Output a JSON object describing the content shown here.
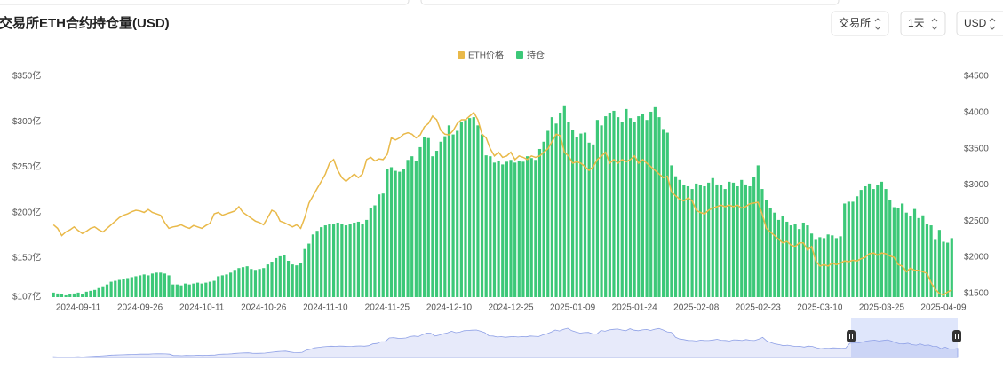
{
  "chart_data": {
    "type": "bar",
    "title": "交易所ETH合约持仓量(USD)",
    "categories": [
      null,
      null,
      null,
      null,
      null,
      null,
      "2024-09-11",
      null,
      null,
      null,
      null,
      null,
      null,
      null,
      null,
      null,
      null,
      null,
      null,
      null,
      null,
      "2024-09-26",
      null,
      null,
      null,
      null,
      null,
      null,
      null,
      null,
      null,
      null,
      null,
      null,
      null,
      null,
      "2024-10-11",
      null,
      null,
      null,
      null,
      null,
      null,
      null,
      null,
      null,
      null,
      null,
      null,
      null,
      null,
      "2024-10-26",
      null,
      null,
      null,
      null,
      null,
      null,
      null,
      null,
      null,
      null,
      null,
      null,
      null,
      null,
      "2024-11-10",
      null,
      null,
      null,
      null,
      null,
      null,
      null,
      null,
      null,
      null,
      null,
      null,
      null,
      null,
      "2024-11-25",
      null,
      null,
      null,
      null,
      null,
      null,
      null,
      null,
      null,
      null,
      null,
      null,
      null,
      null,
      "2024-12-10",
      null,
      null,
      null,
      null,
      null,
      null,
      null,
      null,
      null,
      null,
      null,
      null,
      null,
      null,
      "2024-12-25",
      null,
      null,
      null,
      null,
      null,
      null,
      null,
      null,
      null,
      null,
      null,
      null,
      null,
      null,
      "2025-01-09",
      null,
      null,
      null,
      null,
      null,
      null,
      null,
      null,
      null,
      null,
      null,
      null,
      null,
      null,
      "2025-01-24",
      null,
      null,
      null,
      null,
      null,
      null,
      null,
      null,
      null,
      null,
      null,
      null,
      null,
      null,
      "2025-02-08",
      null,
      null,
      null,
      null,
      null,
      null,
      null,
      null,
      null,
      null,
      null,
      null,
      null,
      null,
      "2025-02-23",
      null,
      null,
      null,
      null,
      null,
      null,
      null,
      null,
      null,
      null,
      null,
      null,
      null,
      null,
      "2025-03-10",
      null,
      null,
      null,
      null,
      null,
      null,
      null,
      null,
      null,
      null,
      null,
      null,
      null,
      null,
      "2025-03-25",
      null,
      null,
      null,
      null,
      null,
      null,
      null,
      null,
      null,
      null,
      null,
      null,
      null,
      null,
      "2025-04-09",
      null,
      null
    ],
    "series": [
      {
        "name": "ETH价格",
        "type": "line",
        "axis": "y2",
        "color": "#e9b949",
        "values": [
          2450,
          2400,
          2300,
          2350,
          2380,
          2420,
          2370,
          2330,
          2360,
          2400,
          2420,
          2380,
          2350,
          2400,
          2450,
          2500,
          2550,
          2580,
          2600,
          2630,
          2650,
          2640,
          2620,
          2660,
          2620,
          2600,
          2580,
          2480,
          2400,
          2420,
          2430,
          2450,
          2420,
          2400,
          2440,
          2420,
          2400,
          2440,
          2470,
          2600,
          2620,
          2580,
          2600,
          2620,
          2640,
          2700,
          2620,
          2580,
          2540,
          2500,
          2480,
          2450,
          2550,
          2650,
          2620,
          2500,
          2480,
          2450,
          2420,
          2450,
          2400,
          2550,
          2750,
          2850,
          2950,
          3050,
          3150,
          3300,
          3350,
          3200,
          3100,
          3050,
          3100,
          3150,
          3100,
          3150,
          3350,
          3380,
          3330,
          3360,
          3350,
          3420,
          3650,
          3620,
          3650,
          3700,
          3720,
          3700,
          3650,
          3690,
          3800,
          3850,
          3950,
          3900,
          3750,
          3700,
          3690,
          3750,
          3850,
          3900,
          3900,
          3950,
          4000,
          3900,
          3700,
          3650,
          3500,
          3400,
          3450,
          3380,
          3400,
          3450,
          3350,
          3400,
          3380,
          3350,
          3400,
          3380,
          3400,
          3450,
          3500,
          3600,
          3700,
          3680,
          3450,
          3400,
          3300,
          3320,
          3300,
          3250,
          3200,
          3250,
          3350,
          3400,
          3450,
          3300,
          3350,
          3300,
          3350,
          3320,
          3350,
          3400,
          3300,
          3350,
          3300,
          3250,
          3200,
          3150,
          3100,
          3120,
          2900,
          2850,
          2800,
          2780,
          2820,
          2780,
          2650,
          2620,
          2600,
          2650,
          2680,
          2700,
          2720,
          2700,
          2720,
          2700,
          2720,
          2680,
          2700,
          2740,
          2750,
          2760,
          2600,
          2400,
          2350,
          2300,
          2250,
          2200,
          2220,
          2170,
          2150,
          2200,
          2200,
          2100,
          2150,
          1950,
          1880,
          1900,
          1880,
          1920,
          1900,
          1920,
          1950,
          1940,
          1960,
          1950,
          1980,
          2000,
          2050,
          2060,
          2030,
          2060,
          2050,
          2020,
          2000,
          1900,
          1880,
          1800,
          1850,
          1820,
          1820,
          1800,
          1780,
          1650,
          1560,
          1500,
          1480,
          1520,
          1550
        ]
      },
      {
        "name": "持仓",
        "type": "bar",
        "color": "#3cc878",
        "values": [
          112,
          111,
          110,
          109,
          110,
          111,
          112,
          110,
          113,
          114,
          115,
          117,
          119,
          121,
          124,
          125,
          126,
          127,
          128,
          129,
          130,
          131,
          132,
          131,
          133,
          134,
          134,
          133,
          131,
          121,
          121,
          120,
          122,
          121,
          122,
          123,
          122,
          123,
          124,
          125,
          130,
          131,
          132,
          134,
          137,
          139,
          140,
          141,
          138,
          137,
          138,
          139,
          143,
          146,
          150,
          152,
          153,
          147,
          143,
          142,
          145,
          160,
          166,
          176,
          180,
          184,
          186,
          188,
          187,
          189,
          188,
          186,
          187,
          189,
          190,
          188,
          192,
          205,
          208,
          220,
          221,
          248,
          250,
          246,
          245,
          248,
          258,
          262,
          257,
          272,
          283,
          282,
          262,
          268,
          278,
          284,
          296,
          286,
          290,
          300,
          302,
          304,
          305,
          296,
          286,
          263,
          262,
          255,
          257,
          253,
          256,
          258,
          255,
          257,
          256,
          262,
          260,
          258,
          270,
          278,
          290,
          305,
          298,
          310,
          318,
          300,
          291,
          283,
          287,
          288,
          277,
          275,
          302,
          296,
          306,
          310,
          312,
          305,
          300,
          314,
          304,
          300,
          306,
          309,
          302,
          311,
          316,
          305,
          292,
          288,
          252,
          240,
          236,
          230,
          229,
          226,
          232,
          230,
          229,
          233,
          238,
          231,
          230,
          226,
          234,
          233,
          229,
          236,
          231,
          229,
          239,
          252,
          226,
          214,
          205,
          200,
          192,
          196,
          190,
          186,
          187,
          182,
          189,
          186,
          177,
          170,
          173,
          172,
          176,
          175,
          172,
          174,
          210,
          212,
          212,
          218,
          225,
          229,
          232,
          226,
          230,
          234,
          226,
          214,
          206,
          205,
          210,
          200,
          196,
          204,
          194,
          197,
          187,
          186,
          170,
          181,
          168,
          167,
          172
        ]
      }
    ],
    "ylim": [
      107,
      350
    ],
    "yticks": [
      {
        "value": 107,
        "label": "$107亿"
      },
      {
        "value": 150,
        "label": "$150亿"
      },
      {
        "value": 200,
        "label": "$200亿"
      },
      {
        "value": 250,
        "label": "$250亿"
      },
      {
        "value": 300,
        "label": "$300亿"
      },
      {
        "value": 350,
        "label": "$350亿"
      }
    ],
    "y2lim": [
      1450,
      4500
    ],
    "y2ticks": [
      {
        "value": 1500,
        "label": "$1500"
      },
      {
        "value": 2000,
        "label": "$2000"
      },
      {
        "value": 2500,
        "label": "$2500"
      },
      {
        "value": 3000,
        "label": "$3000"
      },
      {
        "value": 3500,
        "label": "$3500"
      },
      {
        "value": 4000,
        "label": "$4000"
      },
      {
        "value": 4500,
        "label": "$4500"
      }
    ],
    "grid": false,
    "legend": "top"
  },
  "controls": [
    "交易所",
    "1天",
    "USD"
  ]
}
